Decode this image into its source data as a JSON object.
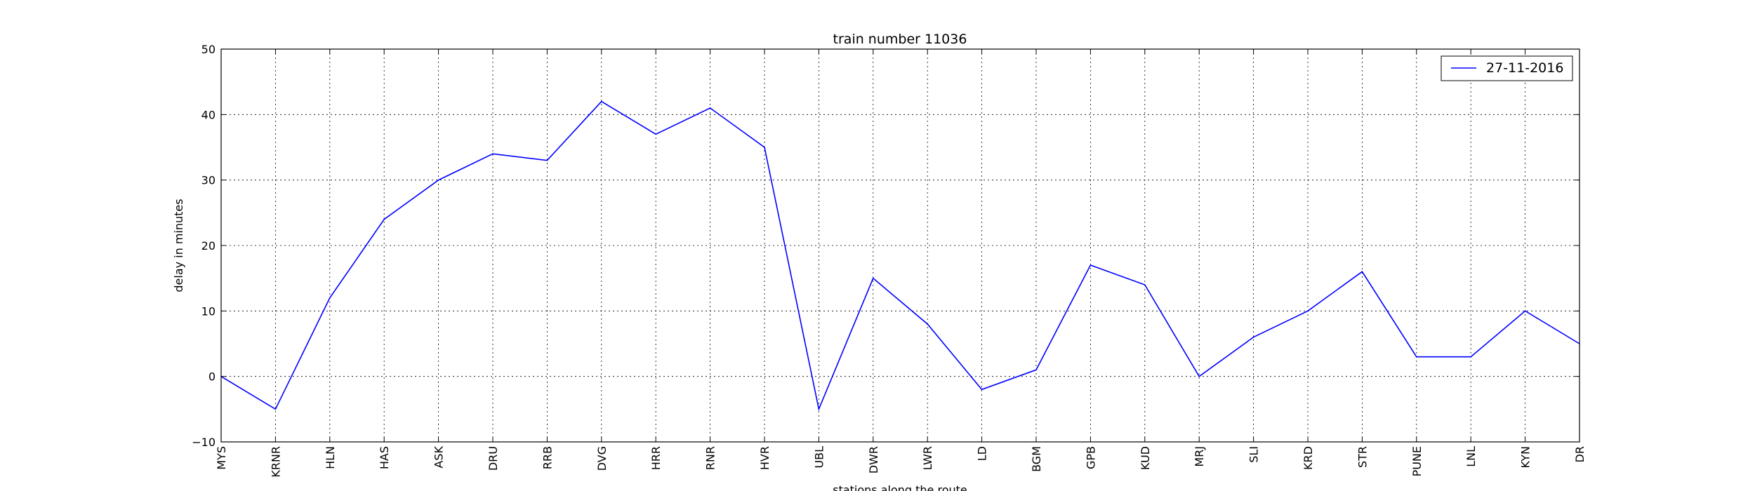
{
  "chart_data": {
    "type": "line",
    "title": "train number 11036",
    "xlabel": "stations along the route",
    "ylabel": "delay in minutes",
    "categories": [
      "MYS",
      "KRNR",
      "HLN",
      "HAS",
      "ASK",
      "DRU",
      "RRB",
      "DVG",
      "HRR",
      "RNR",
      "HVR",
      "UBL",
      "DWR",
      "LWR",
      "LD",
      "BGM",
      "GPB",
      "KUD",
      "MRJ",
      "SLI",
      "KRD",
      "STR",
      "PUNE",
      "LNL",
      "KYN",
      "DR"
    ],
    "series": [
      {
        "name": "27-11-2016",
        "color": "#0000ff",
        "values": [
          0,
          -5,
          12,
          24,
          30,
          34,
          33,
          42,
          37,
          41,
          35,
          -5,
          15,
          8,
          -2,
          1,
          17,
          14,
          0,
          6,
          10,
          16,
          3,
          3,
          10,
          5
        ]
      }
    ],
    "ylim": [
      -10,
      50
    ],
    "yticks": [
      -10,
      0,
      10,
      20,
      30,
      40,
      50
    ],
    "grid": true,
    "legend_position": "top-right"
  }
}
